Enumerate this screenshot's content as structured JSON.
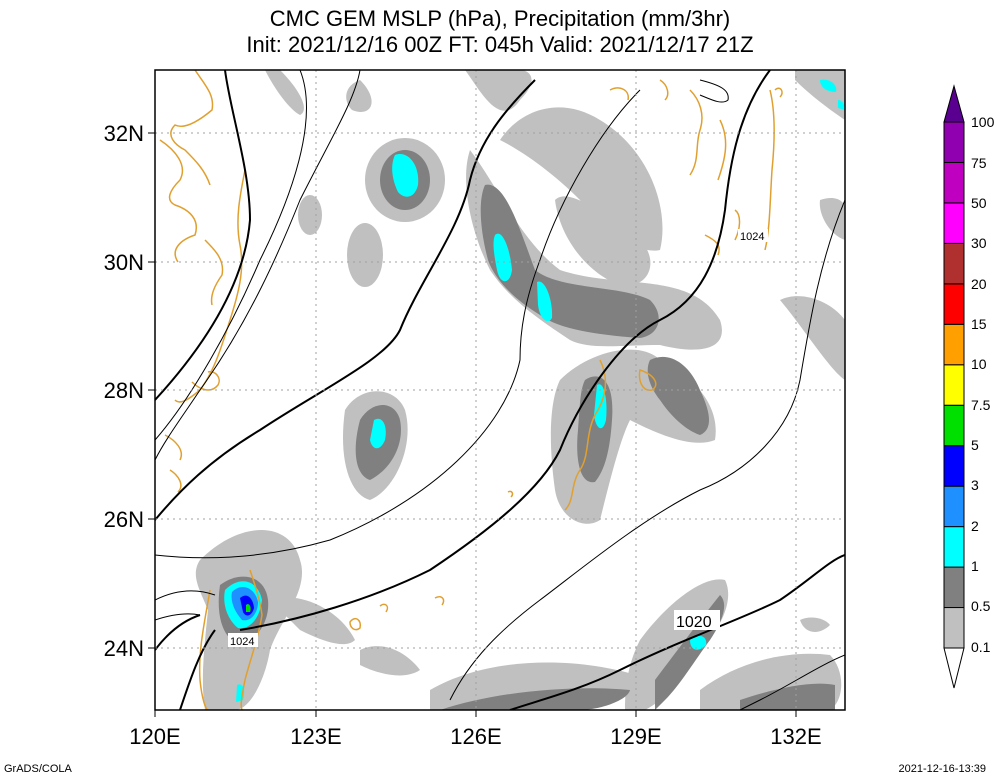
{
  "title": {
    "line1": "CMC GEM MSLP (hPa), Precipitation (mm/3hr)",
    "line2": "Init: 2021/12/16 00Z  FT: 045h  Valid: 2021/12/17 21Z"
  },
  "map": {
    "lon_labels": [
      "120E",
      "123E",
      "126E",
      "129E",
      "132E"
    ],
    "lat_labels": [
      "32N",
      "30N",
      "28N",
      "26N",
      "24N"
    ],
    "isobar_labels": [
      "1024",
      "1024",
      "1020"
    ]
  },
  "legend": {
    "levels": [
      "0.1",
      "0.5",
      "1",
      "2",
      "3",
      "5",
      "7.5",
      "10",
      "15",
      "20",
      "30",
      "50",
      "75",
      "100"
    ],
    "colors": [
      "#ffffff",
      "#c0c0c0",
      "#808080",
      "#00ffff",
      "#1e90ff",
      "#0000ff",
      "#00e000",
      "#ffff00",
      "#ffa000",
      "#ff0000",
      "#b03030",
      "#ff00ff",
      "#c000c0",
      "#9000b0",
      "#5a0090"
    ]
  },
  "colors": {
    "coast": "#e0a030",
    "isobar": "#000000",
    "grid": "#a0a0a0"
  },
  "footer": {
    "left": "GrADS/COLA",
    "right": "2021-12-16-13:39"
  }
}
